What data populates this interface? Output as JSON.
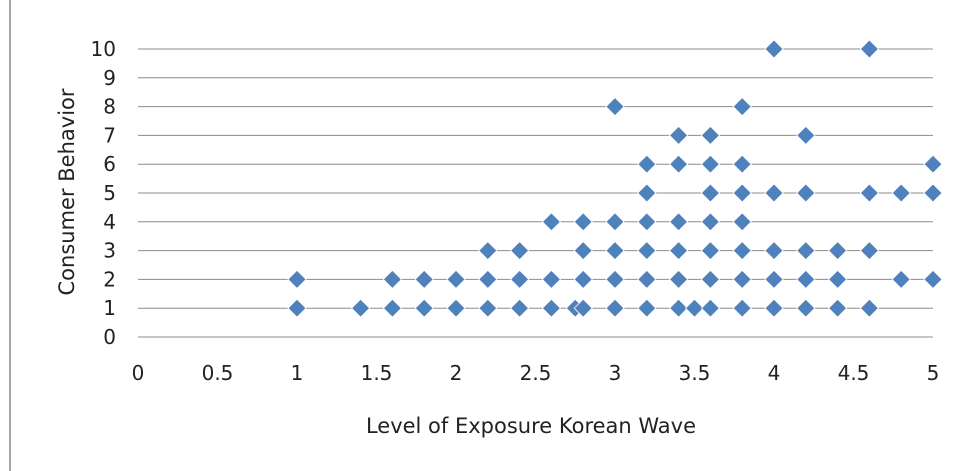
{
  "chart_data": {
    "type": "scatter",
    "title": "",
    "xlabel": "Level of Exposure Korean Wave",
    "ylabel": "Consumer Behavior",
    "xlim": [
      0,
      5
    ],
    "ylim": [
      0,
      10
    ],
    "x_ticks": [
      "0",
      "0.5",
      "1",
      "1.5",
      "2",
      "2.5",
      "3",
      "3.5",
      "4",
      "4.5",
      "5"
    ],
    "y_ticks": [
      "0",
      "1",
      "2",
      "3",
      "4",
      "5",
      "6",
      "7",
      "8",
      "9",
      "10"
    ],
    "grid": "horizontal",
    "legend": "none",
    "marker": "diamond",
    "marker_color": "#4f81bd",
    "points": [
      [
        1,
        1
      ],
      [
        1,
        2
      ],
      [
        1.4,
        1
      ],
      [
        1.6,
        1
      ],
      [
        1.6,
        2
      ],
      [
        1.8,
        1
      ],
      [
        1.8,
        2
      ],
      [
        2,
        1
      ],
      [
        2,
        2
      ],
      [
        2.2,
        1
      ],
      [
        2.2,
        2
      ],
      [
        2.2,
        3
      ],
      [
        2.4,
        1
      ],
      [
        2.4,
        2
      ],
      [
        2.4,
        3
      ],
      [
        2.6,
        1
      ],
      [
        2.6,
        2
      ],
      [
        2.6,
        4
      ],
      [
        2.75,
        1
      ],
      [
        2.8,
        1
      ],
      [
        2.8,
        2
      ],
      [
        2.8,
        3
      ],
      [
        2.8,
        4
      ],
      [
        3,
        1
      ],
      [
        3,
        2
      ],
      [
        3,
        3
      ],
      [
        3,
        4
      ],
      [
        3,
        8
      ],
      [
        3.2,
        1
      ],
      [
        3.2,
        2
      ],
      [
        3.2,
        3
      ],
      [
        3.2,
        4
      ],
      [
        3.2,
        5
      ],
      [
        3.2,
        6
      ],
      [
        3.4,
        1
      ],
      [
        3.4,
        2
      ],
      [
        3.4,
        3
      ],
      [
        3.4,
        4
      ],
      [
        3.4,
        6
      ],
      [
        3.4,
        7
      ],
      [
        3.5,
        1
      ],
      [
        3.6,
        1
      ],
      [
        3.6,
        2
      ],
      [
        3.6,
        3
      ],
      [
        3.6,
        4
      ],
      [
        3.6,
        5
      ],
      [
        3.6,
        6
      ],
      [
        3.6,
        7
      ],
      [
        3.8,
        1
      ],
      [
        3.8,
        2
      ],
      [
        3.8,
        3
      ],
      [
        3.8,
        4
      ],
      [
        3.8,
        5
      ],
      [
        3.8,
        6
      ],
      [
        3.8,
        8
      ],
      [
        4,
        1
      ],
      [
        4,
        2
      ],
      [
        4,
        3
      ],
      [
        4,
        5
      ],
      [
        4,
        10
      ],
      [
        4.2,
        1
      ],
      [
        4.2,
        2
      ],
      [
        4.2,
        3
      ],
      [
        4.2,
        5
      ],
      [
        4.2,
        7
      ],
      [
        4.4,
        1
      ],
      [
        4.4,
        2
      ],
      [
        4.4,
        3
      ],
      [
        4.6,
        1
      ],
      [
        4.6,
        3
      ],
      [
        4.6,
        5
      ],
      [
        4.6,
        10
      ],
      [
        4.8,
        2
      ],
      [
        4.8,
        5
      ],
      [
        5,
        2
      ],
      [
        5,
        5
      ],
      [
        5,
        6
      ]
    ]
  }
}
